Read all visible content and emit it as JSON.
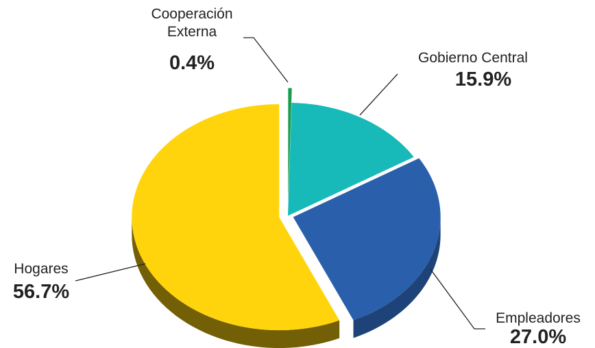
{
  "chart_data": {
    "type": "pie",
    "categories": [
      "Cooperación Externa",
      "Gobierno Central",
      "Empleadores",
      "Hogares"
    ],
    "values": [
      0.4,
      15.9,
      27.0,
      56.7
    ],
    "value_labels": [
      "0.4%",
      "15.9%",
      "27.0%",
      "56.7%"
    ],
    "colors": [
      "#1a9c50",
      "#17bab8",
      "#2a5fab",
      "#ffd40c"
    ]
  }
}
